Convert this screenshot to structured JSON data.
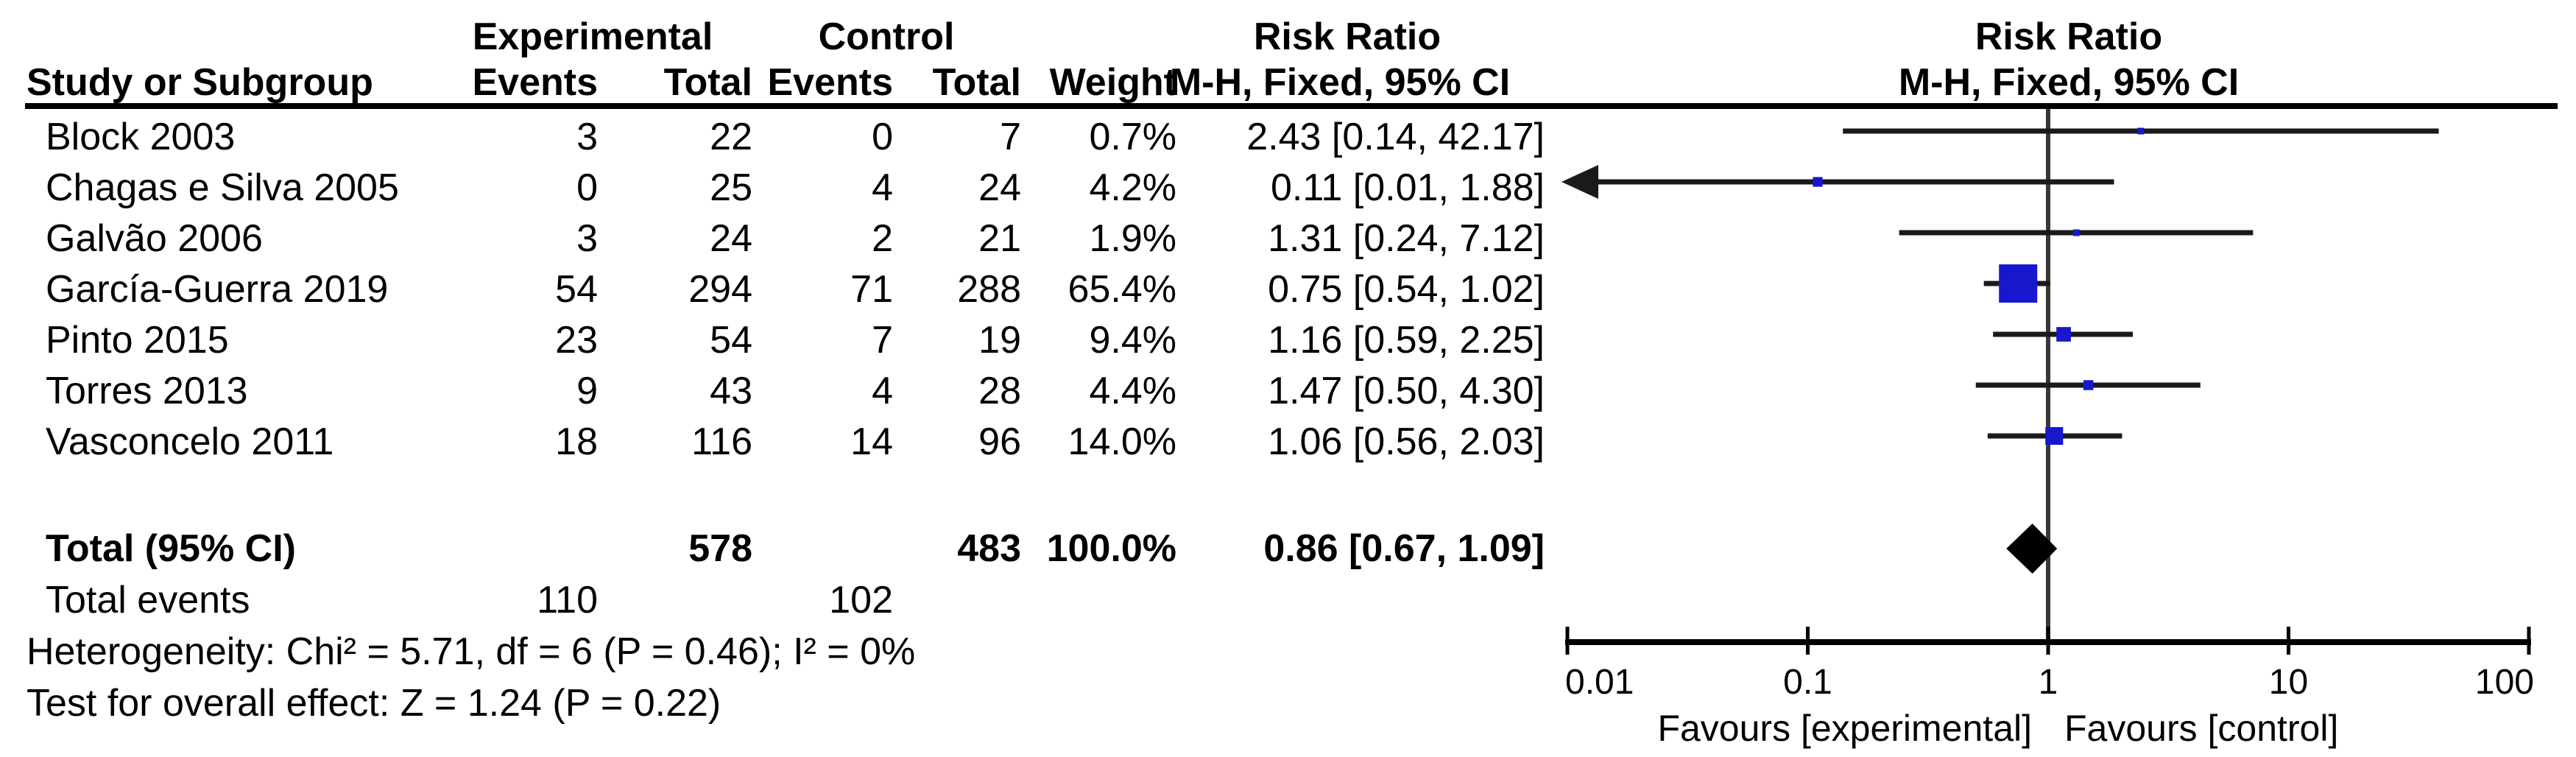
{
  "header": {
    "group_experimental": "Experimental",
    "group_control": "Control",
    "effect_label": "Risk Ratio",
    "method_label": "M-H, Fixed, 95% CI",
    "col_study": "Study or Subgroup",
    "col_events": "Events",
    "col_total": "Total",
    "col_weight": "Weight"
  },
  "chart_data": {
    "type": "forest",
    "effect_measure": "Risk Ratio",
    "method": "M-H, Fixed, 95% CI",
    "marker_color": "#1717CE",
    "line_color": "#1a1a1a",
    "diamond_color": "#000000",
    "x_axis": {
      "scale": "log",
      "min": 0.01,
      "max": 100,
      "ticks": [
        0.01,
        0.1,
        1,
        10,
        100
      ],
      "tick_labels": [
        "0.01",
        "0.1",
        "1",
        "10",
        "100"
      ]
    },
    "favours_left": "Favours [experimental]",
    "favours_right": "Favours [control]",
    "studies": [
      {
        "name": "Block 2003",
        "exp_events": "3",
        "exp_total": "22",
        "ctrl_events": "0",
        "ctrl_total": "7",
        "weight": "0.7%",
        "weight_pct": 0.7,
        "rr": 2.43,
        "ci_low": 0.14,
        "ci_high": 42.17,
        "rr_text": "2.43 [0.14, 42.17]"
      },
      {
        "name": "Chagas e Silva 2005",
        "exp_events": "0",
        "exp_total": "25",
        "ctrl_events": "4",
        "ctrl_total": "24",
        "weight": "4.2%",
        "weight_pct": 4.2,
        "rr": 0.11,
        "ci_low": 0.01,
        "ci_high": 1.88,
        "rr_text": "0.11 [0.01, 1.88]"
      },
      {
        "name": "Galvão 2006",
        "exp_events": "3",
        "exp_total": "24",
        "ctrl_events": "2",
        "ctrl_total": "21",
        "weight": "1.9%",
        "weight_pct": 1.9,
        "rr": 1.31,
        "ci_low": 0.24,
        "ci_high": 7.12,
        "rr_text": "1.31 [0.24, 7.12]"
      },
      {
        "name": "García-Guerra 2019",
        "exp_events": "54",
        "exp_total": "294",
        "ctrl_events": "71",
        "ctrl_total": "288",
        "weight": "65.4%",
        "weight_pct": 65.4,
        "rr": 0.75,
        "ci_low": 0.54,
        "ci_high": 1.02,
        "rr_text": "0.75 [0.54, 1.02]"
      },
      {
        "name": "Pinto 2015",
        "exp_events": "23",
        "exp_total": "54",
        "ctrl_events": "7",
        "ctrl_total": "19",
        "weight": "9.4%",
        "weight_pct": 9.4,
        "rr": 1.16,
        "ci_low": 0.59,
        "ci_high": 2.25,
        "rr_text": "1.16 [0.59, 2.25]"
      },
      {
        "name": "Torres 2013",
        "exp_events": "9",
        "exp_total": "43",
        "ctrl_events": "4",
        "ctrl_total": "28",
        "weight": "4.4%",
        "weight_pct": 4.4,
        "rr": 1.47,
        "ci_low": 0.5,
        "ci_high": 4.3,
        "rr_text": "1.47 [0.50, 4.30]"
      },
      {
        "name": "Vasconcelo 2011",
        "exp_events": "18",
        "exp_total": "116",
        "ctrl_events": "14",
        "ctrl_total": "96",
        "weight": "14.0%",
        "weight_pct": 14.0,
        "rr": 1.06,
        "ci_low": 0.56,
        "ci_high": 2.03,
        "rr_text": "1.06 [0.56, 2.03]"
      }
    ],
    "total": {
      "name": "Total (95% CI)",
      "exp_total": "578",
      "ctrl_total": "483",
      "weight": "100.0%",
      "rr": 0.86,
      "ci_low": 0.67,
      "ci_high": 1.09,
      "rr_text": "0.86 [0.67, 1.09]"
    },
    "total_events": {
      "label": "Total events",
      "experimental": "110",
      "control": "102"
    },
    "heterogeneity": "Heterogeneity: Chi² = 5.71, df = 6 (P = 0.46); I² = 0%",
    "overall_effect": "Test for overall effect: Z = 1.24 (P = 0.22)"
  }
}
